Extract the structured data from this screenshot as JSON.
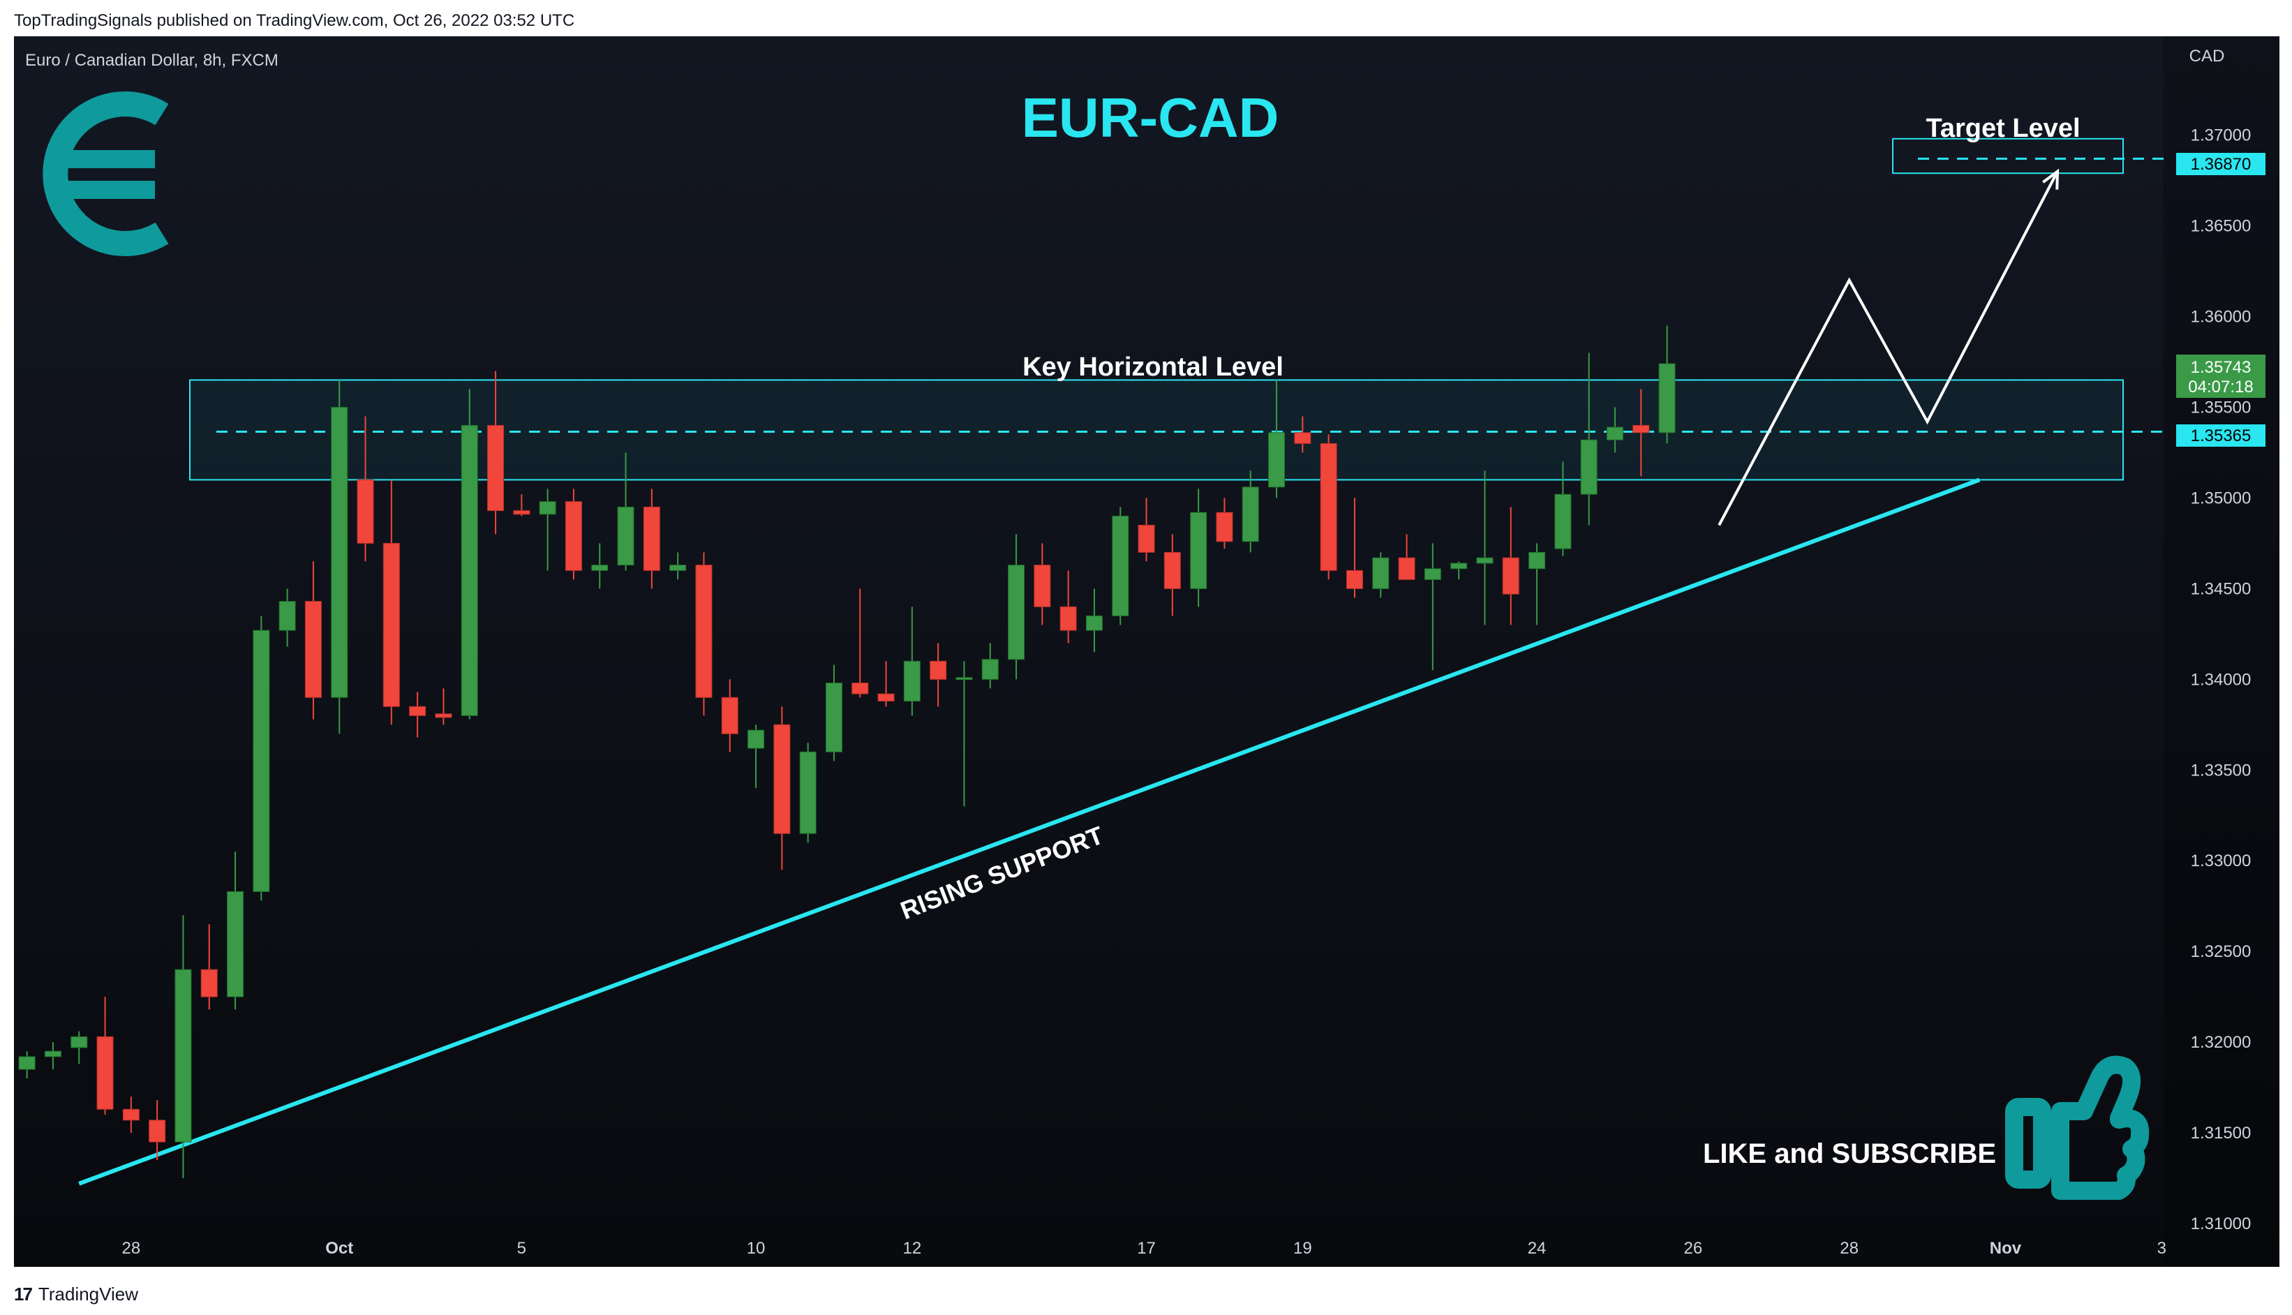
{
  "header": {
    "published": "TopTradingSignals published on TradingView.com, Oct 26, 2022 03:52 UTC"
  },
  "footer": {
    "brand_logo": "17",
    "brand": "TradingView"
  },
  "chart_meta": {
    "symbol": "Euro / Canadian Dollar, 8h, FXCM",
    "currency": "CAD"
  },
  "chart_data": {
    "type": "candlestick",
    "title": "EUR-CAD",
    "ylim": [
      1.31,
      1.375
    ],
    "y_ticks": [
      "1.37000",
      "1.36500",
      "1.36000",
      "1.35500",
      "1.35000",
      "1.34500",
      "1.34000",
      "1.33500",
      "1.33000",
      "1.32500",
      "1.32000",
      "1.31500",
      "1.31000"
    ],
    "x_ticks": [
      {
        "label": "28",
        "i": 4.5
      },
      {
        "label": "Oct",
        "i": 12.5
      },
      {
        "label": "5",
        "i": 19.5
      },
      {
        "label": "10",
        "i": 28.5
      },
      {
        "label": "12",
        "i": 34.5
      },
      {
        "label": "17",
        "i": 43.5
      },
      {
        "label": "19",
        "i": 49.5
      },
      {
        "label": "24",
        "i": 58.5
      },
      {
        "label": "26",
        "i": 64.5
      },
      {
        "label": "28",
        "i": 70.5
      },
      {
        "label": "Nov",
        "i": 76.5
      },
      {
        "label": "3",
        "i": 82.5
      }
    ],
    "candles": [
      {
        "o": 1.3185,
        "h": 1.3195,
        "l": 1.318,
        "c": 1.3192
      },
      {
        "o": 1.3192,
        "h": 1.32,
        "l": 1.3185,
        "c": 1.3195
      },
      {
        "o": 1.3197,
        "h": 1.3206,
        "l": 1.3188,
        "c": 1.3203
      },
      {
        "o": 1.3203,
        "h": 1.3225,
        "l": 1.316,
        "c": 1.3163
      },
      {
        "o": 1.3163,
        "h": 1.317,
        "l": 1.315,
        "c": 1.3157
      },
      {
        "o": 1.3157,
        "h": 1.3168,
        "l": 1.3135,
        "c": 1.3145
      },
      {
        "o": 1.3145,
        "h": 1.327,
        "l": 1.3125,
        "c": 1.324
      },
      {
        "o": 1.324,
        "h": 1.3265,
        "l": 1.3218,
        "c": 1.3225
      },
      {
        "o": 1.3225,
        "h": 1.3305,
        "l": 1.3218,
        "c": 1.3283
      },
      {
        "o": 1.3283,
        "h": 1.3435,
        "l": 1.3278,
        "c": 1.3427
      },
      {
        "o": 1.3427,
        "h": 1.345,
        "l": 1.3418,
        "c": 1.3443
      },
      {
        "o": 1.3443,
        "h": 1.3465,
        "l": 1.3378,
        "c": 1.339
      },
      {
        "o": 1.339,
        "h": 1.3565,
        "l": 1.337,
        "c": 1.355
      },
      {
        "o": 1.351,
        "h": 1.3545,
        "l": 1.3465,
        "c": 1.3475
      },
      {
        "o": 1.3475,
        "h": 1.351,
        "l": 1.3375,
        "c": 1.3385
      },
      {
        "o": 1.3385,
        "h": 1.3393,
        "l": 1.3368,
        "c": 1.338
      },
      {
        "o": 1.3381,
        "h": 1.3395,
        "l": 1.3375,
        "c": 1.3379
      },
      {
        "o": 1.338,
        "h": 1.356,
        "l": 1.3378,
        "c": 1.354
      },
      {
        "o": 1.354,
        "h": 1.357,
        "l": 1.348,
        "c": 1.3493
      },
      {
        "o": 1.3493,
        "h": 1.3502,
        "l": 1.349,
        "c": 1.3491
      },
      {
        "o": 1.3491,
        "h": 1.3505,
        "l": 1.346,
        "c": 1.3498
      },
      {
        "o": 1.3498,
        "h": 1.3505,
        "l": 1.3455,
        "c": 1.346
      },
      {
        "o": 1.346,
        "h": 1.3475,
        "l": 1.345,
        "c": 1.3463
      },
      {
        "o": 1.3463,
        "h": 1.3525,
        "l": 1.346,
        "c": 1.3495
      },
      {
        "o": 1.3495,
        "h": 1.3505,
        "l": 1.345,
        "c": 1.346
      },
      {
        "o": 1.346,
        "h": 1.347,
        "l": 1.3455,
        "c": 1.3463
      },
      {
        "o": 1.3463,
        "h": 1.347,
        "l": 1.338,
        "c": 1.339
      },
      {
        "o": 1.339,
        "h": 1.34,
        "l": 1.336,
        "c": 1.337
      },
      {
        "o": 1.3362,
        "h": 1.3375,
        "l": 1.334,
        "c": 1.3372
      },
      {
        "o": 1.3375,
        "h": 1.3385,
        "l": 1.3295,
        "c": 1.3315
      },
      {
        "o": 1.3315,
        "h": 1.3365,
        "l": 1.331,
        "c": 1.336
      },
      {
        "o": 1.336,
        "h": 1.3408,
        "l": 1.3355,
        "c": 1.3398
      },
      {
        "o": 1.3398,
        "h": 1.345,
        "l": 1.339,
        "c": 1.3392
      },
      {
        "o": 1.3392,
        "h": 1.341,
        "l": 1.3385,
        "c": 1.3388
      },
      {
        "o": 1.3388,
        "h": 1.344,
        "l": 1.338,
        "c": 1.341
      },
      {
        "o": 1.341,
        "h": 1.342,
        "l": 1.3385,
        "c": 1.34
      },
      {
        "o": 1.34,
        "h": 1.341,
        "l": 1.333,
        "c": 1.3401
      },
      {
        "o": 1.34,
        "h": 1.342,
        "l": 1.3395,
        "c": 1.3411
      },
      {
        "o": 1.3411,
        "h": 1.348,
        "l": 1.34,
        "c": 1.3463
      },
      {
        "o": 1.3463,
        "h": 1.3475,
        "l": 1.343,
        "c": 1.344
      },
      {
        "o": 1.344,
        "h": 1.346,
        "l": 1.342,
        "c": 1.3427
      },
      {
        "o": 1.3427,
        "h": 1.345,
        "l": 1.3415,
        "c": 1.3435
      },
      {
        "o": 1.3435,
        "h": 1.3495,
        "l": 1.343,
        "c": 1.349
      },
      {
        "o": 1.3485,
        "h": 1.35,
        "l": 1.3465,
        "c": 1.347
      },
      {
        "o": 1.347,
        "h": 1.348,
        "l": 1.3435,
        "c": 1.345
      },
      {
        "o": 1.345,
        "h": 1.3505,
        "l": 1.344,
        "c": 1.3492
      },
      {
        "o": 1.3492,
        "h": 1.35,
        "l": 1.3472,
        "c": 1.3476
      },
      {
        "o": 1.3476,
        "h": 1.3515,
        "l": 1.347,
        "c": 1.3506
      },
      {
        "o": 1.3506,
        "h": 1.3565,
        "l": 1.35,
        "c": 1.3536
      },
      {
        "o": 1.3536,
        "h": 1.3545,
        "l": 1.3525,
        "c": 1.353
      },
      {
        "o": 1.353,
        "h": 1.3535,
        "l": 1.3455,
        "c": 1.346
      },
      {
        "o": 1.346,
        "h": 1.35,
        "l": 1.3445,
        "c": 1.345
      },
      {
        "o": 1.345,
        "h": 1.347,
        "l": 1.3445,
        "c": 1.3467
      },
      {
        "o": 1.3467,
        "h": 1.348,
        "l": 1.3455,
        "c": 1.3455
      },
      {
        "o": 1.3455,
        "h": 1.3475,
        "l": 1.3405,
        "c": 1.3461
      },
      {
        "o": 1.3461,
        "h": 1.3465,
        "l": 1.3455,
        "c": 1.3464
      },
      {
        "o": 1.3464,
        "h": 1.3515,
        "l": 1.343,
        "c": 1.3467
      },
      {
        "o": 1.3467,
        "h": 1.3495,
        "l": 1.343,
        "c": 1.3447
      },
      {
        "o": 1.3461,
        "h": 1.3475,
        "l": 1.343,
        "c": 1.347
      },
      {
        "o": 1.3472,
        "h": 1.352,
        "l": 1.3468,
        "c": 1.3502
      },
      {
        "o": 1.3502,
        "h": 1.358,
        "l": 1.3485,
        "c": 1.3532
      },
      {
        "o": 1.3532,
        "h": 1.355,
        "l": 1.3525,
        "c": 1.3539
      },
      {
        "o": 1.354,
        "h": 1.356,
        "l": 1.3512,
        "c": 1.3536
      },
      {
        "o": 1.3536,
        "h": 1.3595,
        "l": 1.353,
        "c": 1.3574
      }
    ],
    "key_level": {
      "label": "Key Horizontal Level",
      "price": 1.35365,
      "zone": [
        1.351,
        1.3565
      ]
    },
    "target": {
      "label": "Target Level",
      "price": 1.3687,
      "zone": [
        1.3679,
        1.3698
      ]
    },
    "current_price": {
      "price": 1.35743,
      "value": "1.35743",
      "countdown": "04:07:18"
    },
    "key_price_label": "1.35365",
    "target_price_label": "1.36870",
    "support": {
      "label": "RISING SUPPORT",
      "from": {
        "i": 2.5,
        "p": 1.3122
      },
      "to": {
        "i": 75.5,
        "p": 1.351
      }
    },
    "projection": [
      {
        "i": 65.5,
        "p": 1.3485
      },
      {
        "i": 70.5,
        "p": 1.362
      },
      {
        "i": 73.5,
        "p": 1.3542
      },
      {
        "i": 78.5,
        "p": 1.368
      }
    ],
    "callout": "LIKE and SUBSCRIBE",
    "colors": {
      "up": "#3a9a47",
      "down": "#f0463c",
      "cyan": "#29e6f0",
      "teal": "#0f9a9c",
      "bg": "#0d1016"
    }
  }
}
